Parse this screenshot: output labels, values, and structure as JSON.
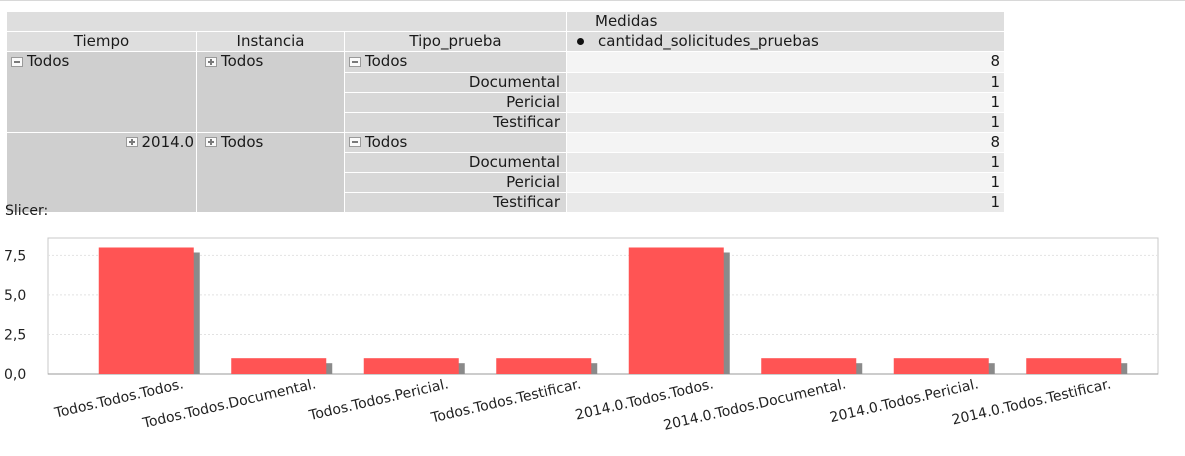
{
  "pivot": {
    "header": {
      "measures_label": "Medidas",
      "col_tiempo": "Tiempo",
      "col_instancia": "Instancia",
      "col_tipo": "Tipo_prueba",
      "col_measure": "cantidad_solicitudes_pruebas"
    },
    "groups": [
      {
        "tiempo": "Todos",
        "tiempo_state": "collapse",
        "instancia": "Todos",
        "instancia_state": "expand",
        "rows": [
          {
            "tipo": "Todos",
            "tipo_state": "collapse",
            "value": "8"
          },
          {
            "tipo": "Documental",
            "value": "1"
          },
          {
            "tipo": "Pericial",
            "value": "1"
          },
          {
            "tipo": "Testificar",
            "value": "1"
          }
        ]
      },
      {
        "tiempo": "2014.0",
        "tiempo_state": "expand",
        "instancia": "Todos",
        "instancia_state": "expand",
        "rows": [
          {
            "tipo": "Todos",
            "tipo_state": "collapse",
            "value": "8"
          },
          {
            "tipo": "Documental",
            "value": "1"
          },
          {
            "tipo": "Pericial",
            "value": "1"
          },
          {
            "tipo": "Testificar",
            "value": "1"
          }
        ]
      }
    ]
  },
  "slicer_label": "Slicer:",
  "chart_data": {
    "type": "bar",
    "categories": [
      "Todos.Todos.Todos.",
      "Todos.Todos.Documental.",
      "Todos.Todos.Pericial.",
      "Todos.Todos.Testificar.",
      "2014.0.Todos.Todos.",
      "2014.0.Todos.Documental.",
      "2014.0.Todos.Pericial.",
      "2014.0.Todos.Testificar."
    ],
    "values": [
      8,
      1,
      1,
      1,
      8,
      1,
      1,
      1
    ],
    "y_ticks": [
      "0,0",
      "2,5",
      "5,0",
      "7,5"
    ],
    "ylim": [
      0,
      8.6
    ],
    "bar_color": "#ff5454",
    "shadow_color": "#8a8a8a",
    "grid": true
  }
}
